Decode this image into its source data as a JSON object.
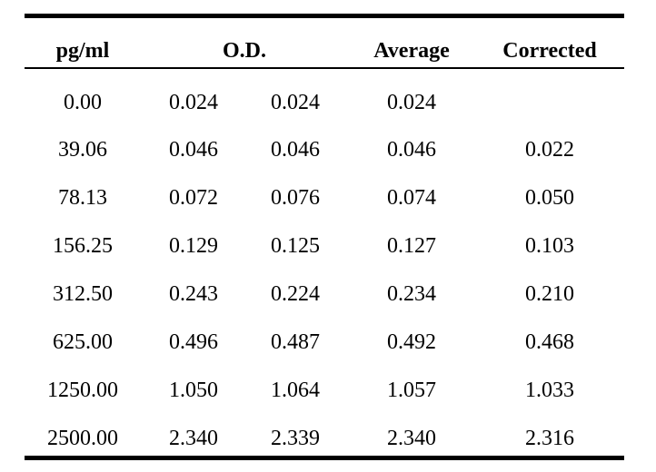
{
  "table": {
    "headers": {
      "conc": "pg/ml",
      "od": "O.D.",
      "average": "Average",
      "corrected": "Corrected"
    },
    "rows": [
      {
        "conc": "0.00",
        "od1": "0.024",
        "od2": "0.024",
        "average": "0.024",
        "corrected": ""
      },
      {
        "conc": "39.06",
        "od1": "0.046",
        "od2": "0.046",
        "average": "0.046",
        "corrected": "0.022"
      },
      {
        "conc": "78.13",
        "od1": "0.072",
        "od2": "0.076",
        "average": "0.074",
        "corrected": "0.050"
      },
      {
        "conc": "156.25",
        "od1": "0.129",
        "od2": "0.125",
        "average": "0.127",
        "corrected": "0.103"
      },
      {
        "conc": "312.50",
        "od1": "0.243",
        "od2": "0.224",
        "average": "0.234",
        "corrected": "0.210"
      },
      {
        "conc": "625.00",
        "od1": "0.496",
        "od2": "0.487",
        "average": "0.492",
        "corrected": "0.468"
      },
      {
        "conc": "1250.00",
        "od1": "1.050",
        "od2": "1.064",
        "average": "1.057",
        "corrected": "1.033"
      },
      {
        "conc": "2500.00",
        "od1": "2.340",
        "od2": "2.339",
        "average": "2.340",
        "corrected": "2.316"
      }
    ]
  }
}
